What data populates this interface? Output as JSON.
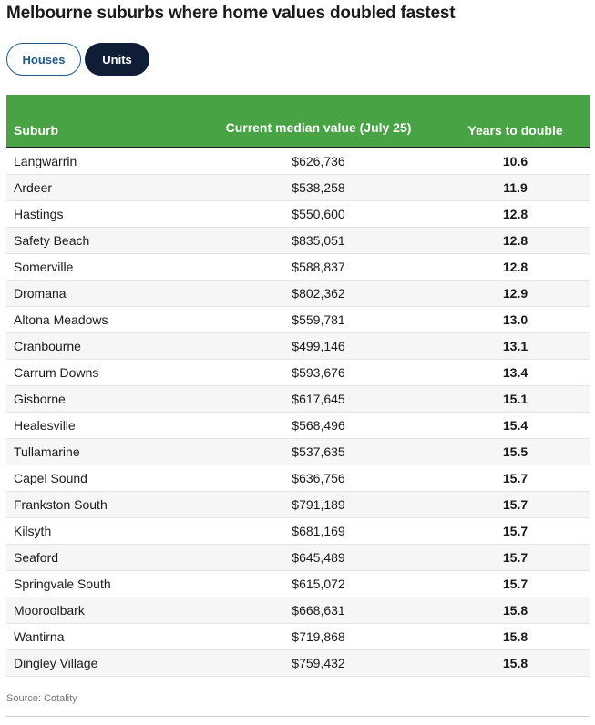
{
  "title": "Melbourne suburbs where home values doubled fastest",
  "tabs": [
    {
      "label": "Houses",
      "active": false
    },
    {
      "label": "Units",
      "active": true
    }
  ],
  "colors": {
    "header_bg": "#47a344",
    "active_tab": "#0f1e36",
    "inactive_tab_text": "#1e5a8c"
  },
  "table": {
    "headers": [
      "Suburb",
      "Current median value (July 25)",
      "Years to double"
    ],
    "rows": [
      [
        "Langwarrin",
        "$626,736",
        "10.6"
      ],
      [
        "Ardeer",
        "$538,258",
        "11.9"
      ],
      [
        "Hastings",
        "$550,600",
        "12.8"
      ],
      [
        "Safety Beach",
        "$835,051",
        "12.8"
      ],
      [
        "Somerville",
        "$588,837",
        "12.8"
      ],
      [
        "Dromana",
        "$802,362",
        "12.9"
      ],
      [
        "Altona Meadows",
        "$559,781",
        "13.0"
      ],
      [
        "Cranbourne",
        "$499,146",
        "13.1"
      ],
      [
        "Carrum Downs",
        "$593,676",
        "13.4"
      ],
      [
        "Gisborne",
        "$617,645",
        "15.1"
      ],
      [
        "Healesville",
        "$568,496",
        "15.4"
      ],
      [
        "Tullamarine",
        "$537,635",
        "15.5"
      ],
      [
        "Capel Sound",
        "$636,756",
        "15.7"
      ],
      [
        "Frankston South",
        "$791,189",
        "15.7"
      ],
      [
        "Kilsyth",
        "$681,169",
        "15.7"
      ],
      [
        "Seaford",
        "$645,489",
        "15.7"
      ],
      [
        "Springvale South",
        "$615,072",
        "15.7"
      ],
      [
        "Mooroolbark",
        "$668,631",
        "15.8"
      ],
      [
        "Wantirna",
        "$719,868",
        "15.8"
      ],
      [
        "Dingley Village",
        "$759,432",
        "15.8"
      ]
    ]
  },
  "source": "Source: Cotality"
}
